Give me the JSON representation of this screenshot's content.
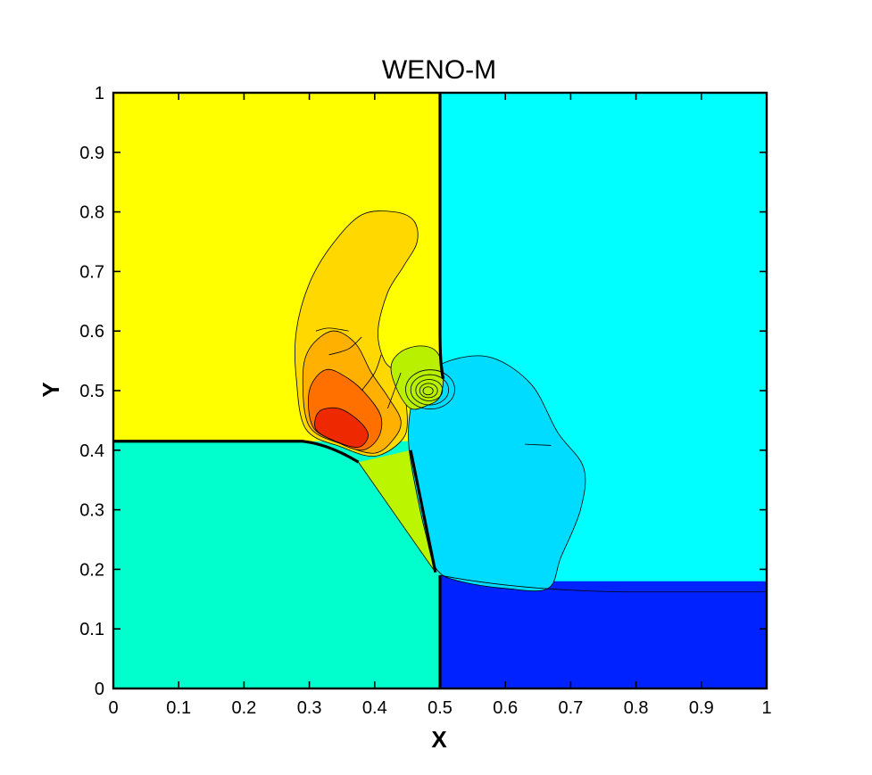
{
  "chart_data": {
    "type": "heatmap",
    "title": "WENO-M",
    "xlabel": "X",
    "ylabel": "Y",
    "xlim": [
      0,
      1
    ],
    "ylim": [
      0,
      1
    ],
    "x_ticks": [
      "0",
      "0.1",
      "0.2",
      "0.3",
      "0.4",
      "0.5",
      "0.6",
      "0.7",
      "0.8",
      "0.9",
      "1"
    ],
    "y_ticks": [
      "0",
      "0.1",
      "0.2",
      "0.3",
      "0.4",
      "0.5",
      "0.6",
      "0.7",
      "0.8",
      "0.9",
      "1"
    ],
    "grid": false,
    "legend": "none",
    "colors": {
      "upper_left": "#ffff00",
      "upper_right": "#00ffff",
      "lower_left": "#00ffcc",
      "lower_right": "#0022ff",
      "right_bubble": "#00dcff",
      "triangle": "#bbf500",
      "mushroom": "#ffd800",
      "mushroom_mid": "#ffb000",
      "mushroom_hot": "#ff7000",
      "mushroom_max": "#ee2800",
      "vortex": "#b8f000",
      "vortex_core": "#0080ff"
    },
    "regions": [
      {
        "name": "upper-left",
        "x": [
          0,
          0.5
        ],
        "y": [
          0.415,
          1
        ]
      },
      {
        "name": "upper-right",
        "x": [
          0.5,
          1
        ],
        "y": [
          0.16,
          1
        ]
      },
      {
        "name": "lower-left",
        "x": [
          0,
          0.5
        ],
        "y": [
          0,
          0.415
        ]
      },
      {
        "name": "lower-right",
        "x": [
          0.5,
          1
        ],
        "y": [
          0,
          0.18
        ]
      }
    ]
  }
}
